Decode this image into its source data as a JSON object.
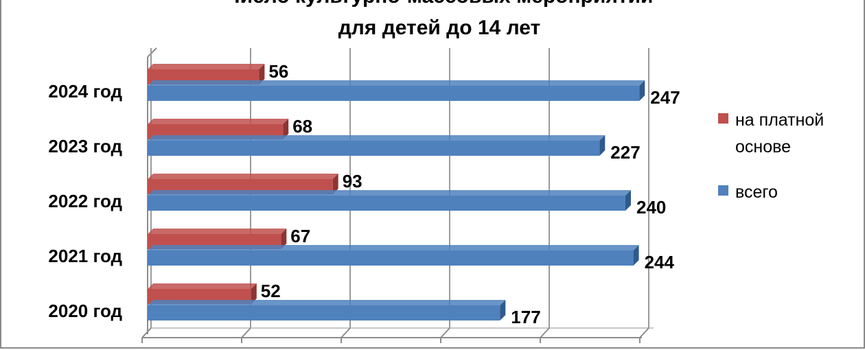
{
  "chart_data": {
    "type": "bar",
    "orientation": "horizontal",
    "title_lines": [
      "Число культурно-массовых мероприятий",
      "для детей до 14 лет"
    ],
    "categories": [
      "2020 год",
      "2021 год",
      "2022 год",
      "2023 год",
      "2024 год"
    ],
    "series": [
      {
        "name": "на платной основе",
        "values": [
          52,
          67,
          93,
          68,
          56
        ],
        "color": "#C0504D",
        "dark": "#8E3532"
      },
      {
        "name": "всего",
        "values": [
          177,
          244,
          240,
          227,
          247
        ],
        "color": "#4F81BD",
        "dark": "#2E5A8C"
      }
    ],
    "legend_lines": [
      [
        "на платной",
        "основе"
      ],
      [
        "всего"
      ]
    ],
    "xlim": [
      0,
      250
    ],
    "grid": true,
    "legend_position": "right",
    "style": "3d-clustered-bar"
  }
}
